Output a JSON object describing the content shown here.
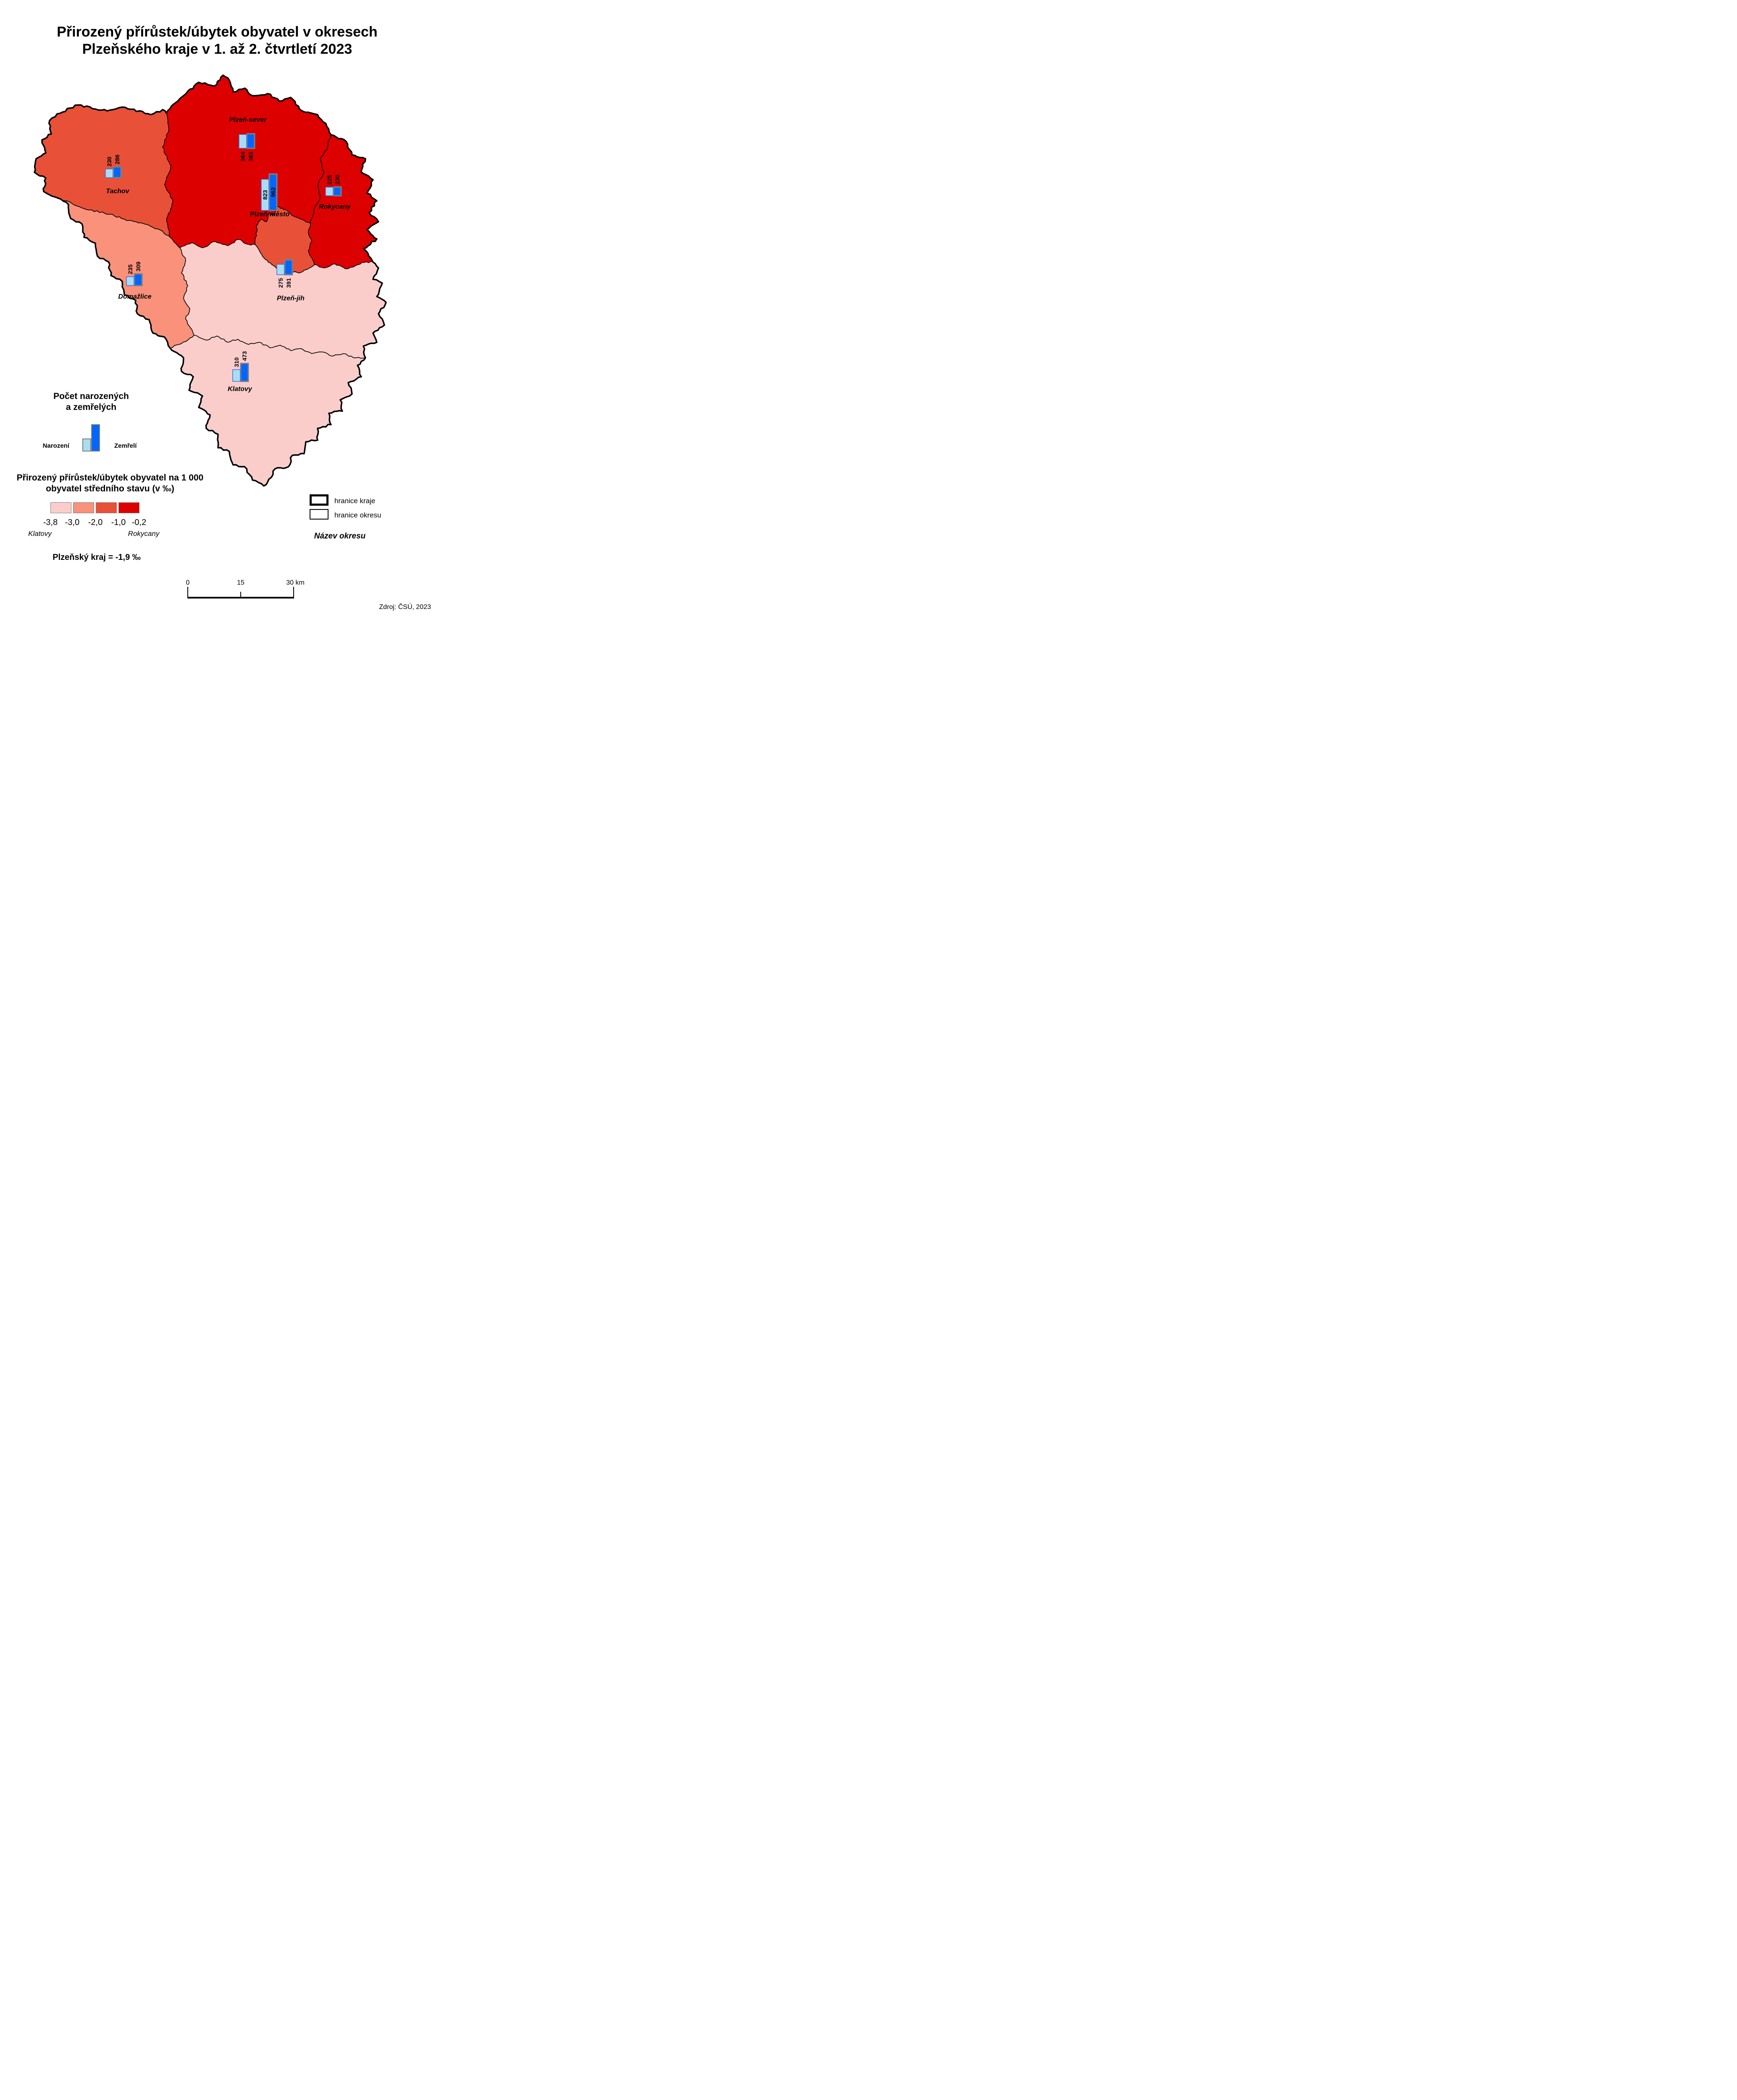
{
  "title": {
    "line1": "Přirozený přírůstek/úbytek obyvatel v okresech",
    "line2": "Plzeňského kraje v 1. až 2. čtvrtletí 2023"
  },
  "map": {
    "districts": [
      {
        "id": "tachov",
        "name": "Tachov",
        "births": 230,
        "deaths": 286,
        "fill": "#E85038"
      },
      {
        "id": "plzen-sever",
        "name": "Plzeň-sever",
        "births": 364,
        "deaths": 383,
        "fill": "#DD0000"
      },
      {
        "id": "plzen-mesto",
        "name": "Plzeň-město",
        "births": 823,
        "deaths": 962,
        "fill": "#E85038"
      },
      {
        "id": "rokycany",
        "name": "Rokycany",
        "births": 225,
        "deaths": 230,
        "fill": "#DD0000"
      },
      {
        "id": "domazlice",
        "name": "Domažlice",
        "births": 235,
        "deaths": 309,
        "fill": "#F9917B"
      },
      {
        "id": "plzen-jih",
        "name": "Plzeň-jih",
        "births": 275,
        "deaths": 391,
        "fill": "#FACDCB"
      },
      {
        "id": "klatovy",
        "name": "Klatovy",
        "births": 310,
        "deaths": 473,
        "fill": "#FACDCB"
      }
    ]
  },
  "bar_legend": {
    "title_line1": "Počet narozených",
    "title_line2": "a zemřelých",
    "births_label": "Narození",
    "deaths_label": "Zemřelí"
  },
  "choropleth_legend": {
    "title_line1": "Přirozený přírůstek/úbytek obyvatel na 1 000",
    "title_line2": "obyvatel středního stavu (v ‰)",
    "ticks": [
      "-3,8",
      "-3,0",
      "-2,0",
      "-1,0",
      "-0,2"
    ],
    "classes": [
      {
        "color": "#FACDCB"
      },
      {
        "color": "#F9917B"
      },
      {
        "color": "#E85038"
      },
      {
        "color": "#DD0000"
      }
    ],
    "min_district": "Klatovy",
    "max_district": "Rokycany"
  },
  "region_summary": "Plzeňský kraj = -1,9 ‰",
  "boundaries_legend": {
    "kraj": "hranice kraje",
    "okres": "hranice okresu",
    "district_name_example": "Název okresu"
  },
  "scale_bar": {
    "start": "0",
    "middle": "15",
    "end": "30 km"
  },
  "source": "Zdroj: ČSÚ, 2023",
  "colors": {
    "births_fill": "#A9DDF3",
    "births_border": "#4169E1",
    "deaths_fill": "#0066FE",
    "deaths_border": "#7F7F7F",
    "kraj_border": "#000000",
    "okres_border": "#000000"
  }
}
